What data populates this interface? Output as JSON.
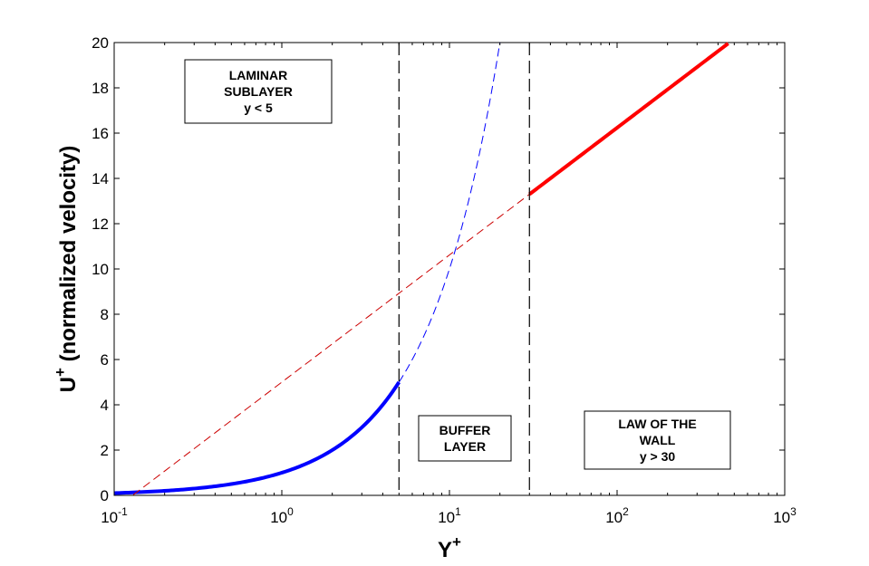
{
  "chart_data": {
    "type": "line",
    "xscale": "log",
    "xlim": [
      0.1,
      1000
    ],
    "ylim": [
      0,
      20
    ],
    "xticks": [
      {
        "base": "10",
        "exp": "-1",
        "value": 0.1
      },
      {
        "base": "10",
        "exp": "0",
        "value": 1
      },
      {
        "base": "10",
        "exp": "1",
        "value": 10
      },
      {
        "base": "10",
        "exp": "2",
        "value": 100
      },
      {
        "base": "10",
        "exp": "3",
        "value": 1000
      }
    ],
    "yticks": [
      "0",
      "2",
      "4",
      "6",
      "8",
      "10",
      "12",
      "14",
      "16",
      "18",
      "20"
    ],
    "xlabel": {
      "main": "Y",
      "sup": "+"
    },
    "ylabel": {
      "main": "U",
      "sup": "+",
      "rest": " (normalized velocity)"
    },
    "grid": false,
    "series": [
      {
        "style": "solid",
        "color": "#0000ff",
        "relation": "U+ = y+",
        "x_range": [
          0.1,
          5
        ]
      },
      {
        "style": "dashed",
        "color": "#0000ff",
        "relation": "U+ = y+",
        "x_range": [
          5,
          20
        ]
      },
      {
        "style": "dashed",
        "color": "#cc0000",
        "relation": "U+ = 2.44 ln(y+) + 5.0",
        "x_range": [
          0.13,
          30
        ]
      },
      {
        "style": "solid",
        "color": "#ff0000",
        "relation": "U+ = 2.44 ln(y+) + 5.0",
        "x_range": [
          30,
          460
        ]
      }
    ],
    "vlines": [
      5,
      30
    ],
    "annotations": [
      {
        "lines": [
          "LAMINAR",
          "SUBLAYER",
          "y < 5"
        ]
      },
      {
        "lines": [
          "BUFFER",
          "LAYER"
        ]
      },
      {
        "lines": [
          "LAW OF THE",
          "WALL",
          "y > 30"
        ]
      }
    ]
  }
}
